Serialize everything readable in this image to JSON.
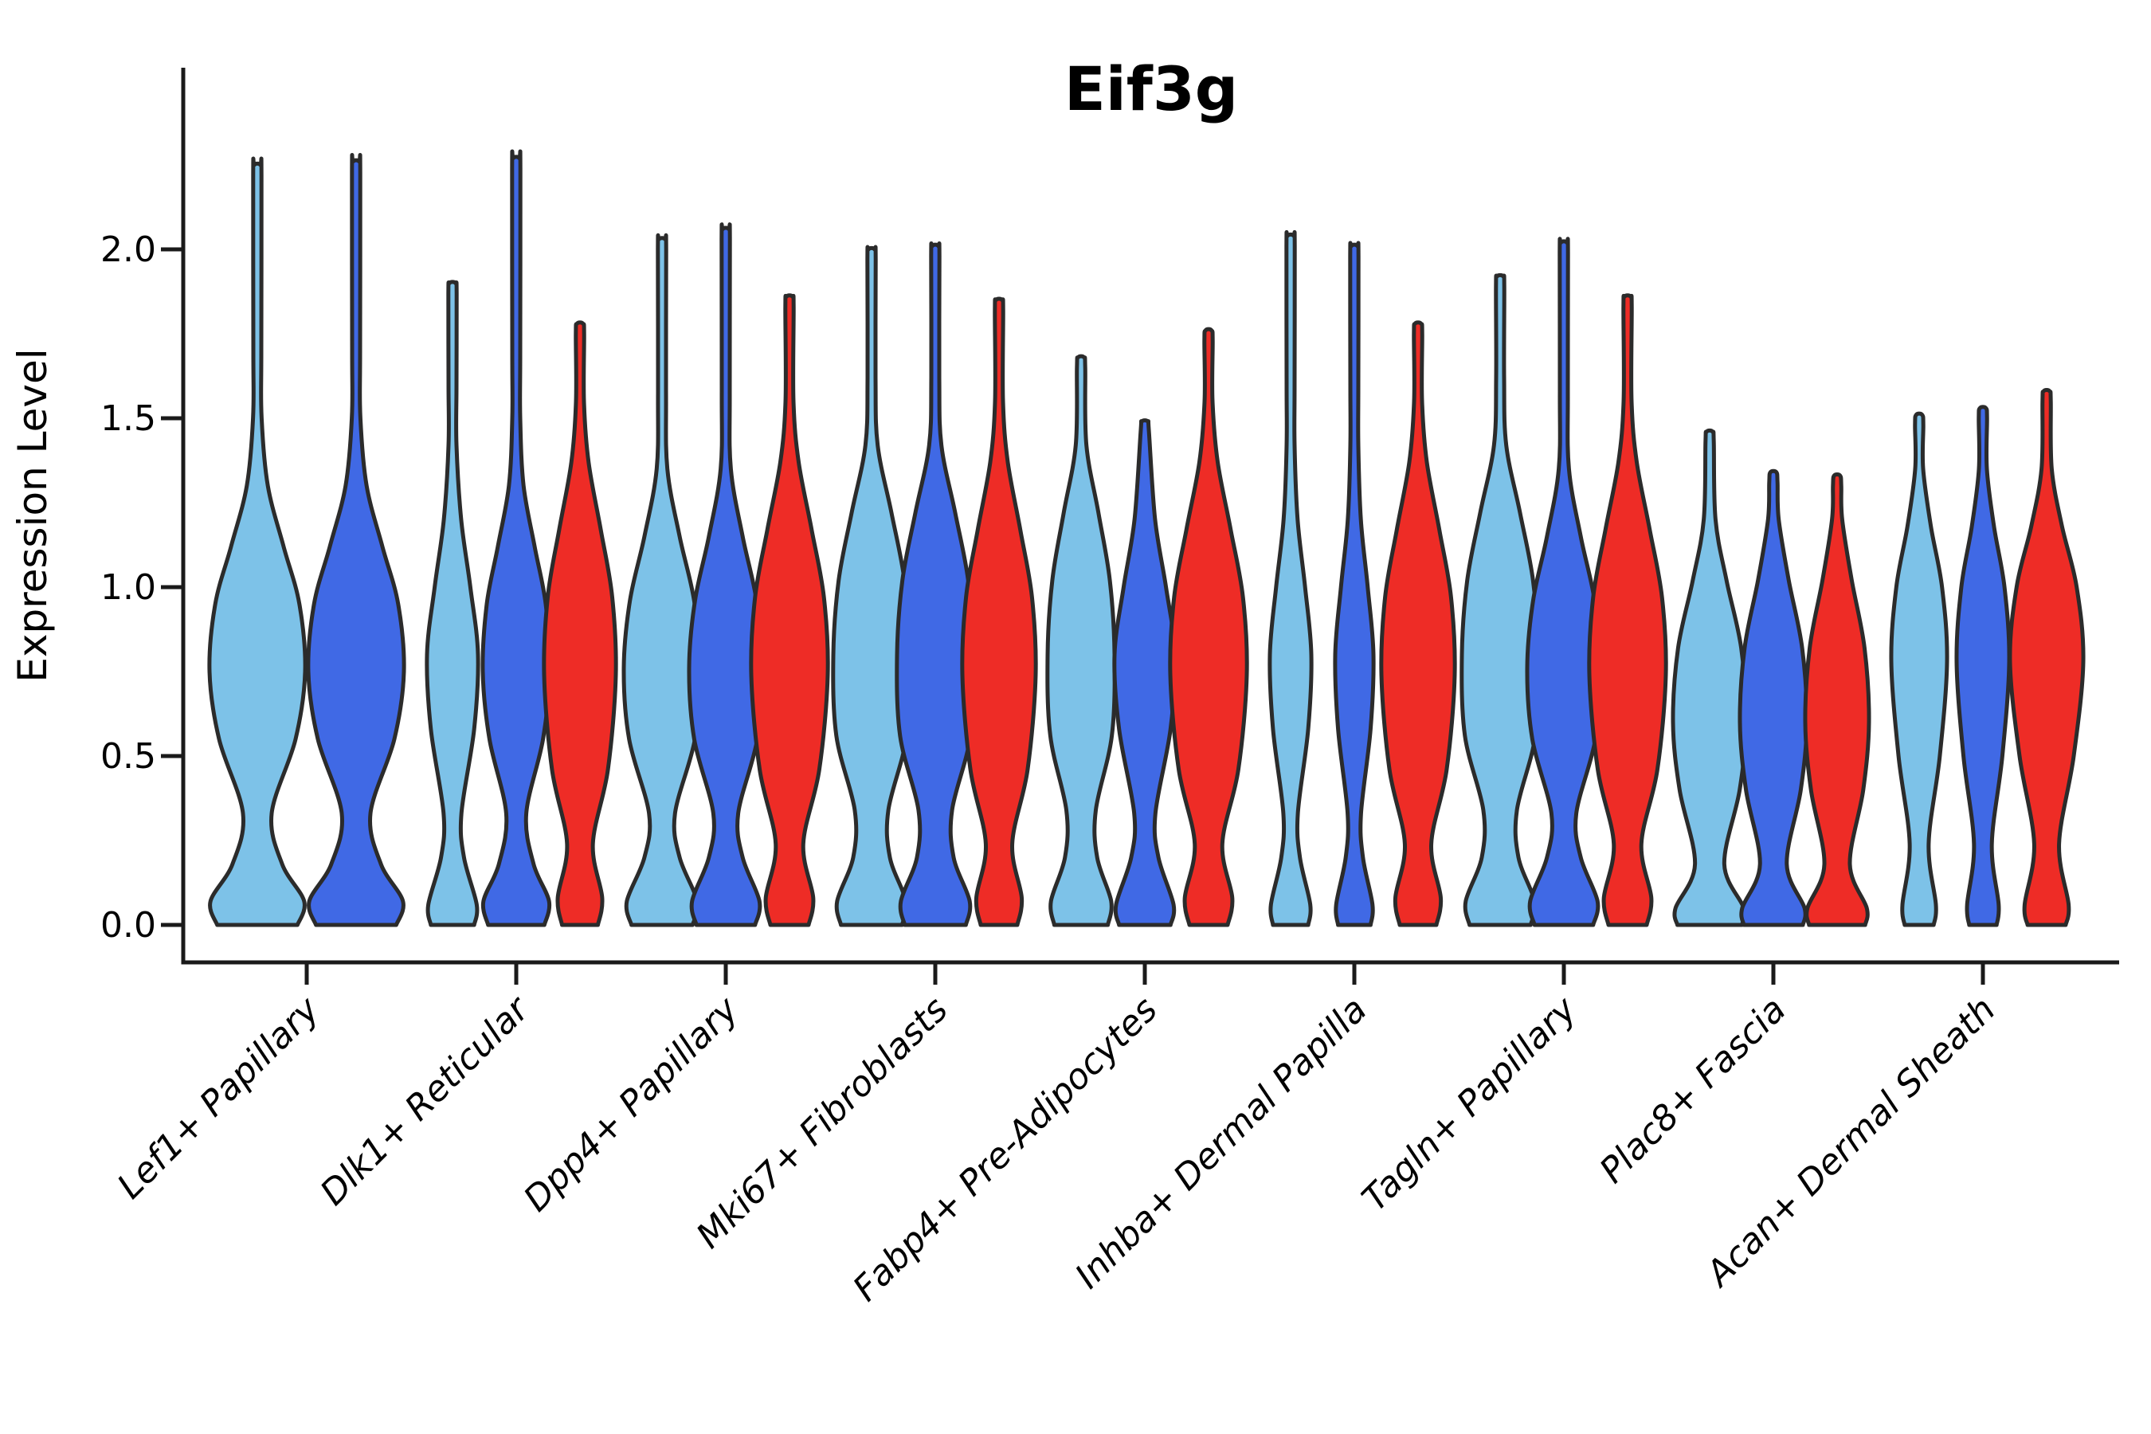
{
  "title": "Eif3g",
  "axes": {
    "ylabel": "Expression Level",
    "ytick_labels": [
      "0.0",
      "0.5",
      "1.0",
      "1.5",
      "2.0"
    ]
  },
  "colors": {
    "light_blue": "#7DC2E8",
    "dark_blue": "#4069E5",
    "red": "#EE2C26",
    "edge": "#2B2B2B",
    "axis": "#1A1A1A",
    "text": "#000000",
    "background": "#FFFFFF"
  },
  "chart_data": {
    "type": "violin",
    "title": "Eif3g",
    "xlabel": "",
    "ylabel": "Expression Level",
    "grid": false,
    "legend_position": "none",
    "ylim": [
      0,
      2.5
    ],
    "yticks": [
      0,
      0.5,
      1.0,
      1.5,
      2.0
    ],
    "series": [
      {
        "name": "light_blue",
        "color": "#7DC2E8"
      },
      {
        "name": "dark_blue",
        "color": "#4069E5"
      },
      {
        "name": "red",
        "color": "#EE2C26"
      }
    ],
    "categories": [
      "Lef1+ Papillary",
      "Dlk1+ Reticular",
      "Dpp4+ Papillary",
      "Mki67+ Fibroblasts",
      "Fabp4+ Pre-Adipocytes",
      "Inhba+ Dermal Papilla",
      "Tagln+ Papillary",
      "Plac8+ Fascia",
      "Acan+ Dermal Sheath"
    ],
    "profiles": {
      "A": [
        [
          0,
          0.84
        ],
        [
          0.07,
          0.98
        ],
        [
          0.18,
          0.52
        ],
        [
          0.33,
          0.3
        ],
        [
          0.55,
          0.8
        ],
        [
          0.75,
          1.0
        ],
        [
          0.95,
          0.88
        ],
        [
          1.12,
          0.55
        ],
        [
          1.3,
          0.22
        ],
        [
          1.5,
          0.09
        ],
        [
          1.7,
          0.06
        ]
      ],
      "B": [
        [
          0,
          0.8
        ],
        [
          0.07,
          0.92
        ],
        [
          0.2,
          0.46
        ],
        [
          0.33,
          0.34
        ],
        [
          0.55,
          0.86
        ],
        [
          0.76,
          1.0
        ],
        [
          0.96,
          0.84
        ],
        [
          1.15,
          0.46
        ],
        [
          1.35,
          0.14
        ],
        [
          1.58,
          0.07
        ]
      ],
      "C": [
        [
          0,
          0.8
        ],
        [
          0.07,
          0.9
        ],
        [
          0.2,
          0.48
        ],
        [
          0.34,
          0.44
        ],
        [
          0.56,
          0.92
        ],
        [
          0.8,
          1.0
        ],
        [
          1.02,
          0.86
        ],
        [
          1.22,
          0.52
        ],
        [
          1.42,
          0.16
        ],
        [
          1.62,
          0.07
        ]
      ],
      "D": [
        [
          0,
          0.5
        ],
        [
          0.08,
          0.62
        ],
        [
          0.24,
          0.36
        ],
        [
          0.46,
          0.78
        ],
        [
          0.74,
          1.0
        ],
        [
          0.97,
          0.9
        ],
        [
          1.17,
          0.58
        ],
        [
          1.37,
          0.24
        ],
        [
          1.55,
          0.09
        ]
      ],
      "E": [
        [
          0,
          0.85
        ],
        [
          0.06,
          0.95
        ],
        [
          0.2,
          0.45
        ],
        [
          0.33,
          0.35
        ],
        [
          0.58,
          0.85
        ],
        [
          0.8,
          1.0
        ],
        [
          1.0,
          0.7
        ],
        [
          1.2,
          0.34
        ],
        [
          1.42,
          0.11
        ],
        [
          1.6,
          0.06
        ]
      ],
      "F": [
        [
          0,
          0.88
        ],
        [
          0.05,
          0.93
        ],
        [
          0.18,
          0.4
        ],
        [
          0.4,
          0.82
        ],
        [
          0.6,
          1.0
        ],
        [
          0.82,
          0.86
        ],
        [
          1.02,
          0.46
        ],
        [
          1.2,
          0.16
        ]
      ],
      "G": [
        [
          0,
          0.52
        ],
        [
          0.06,
          0.6
        ],
        [
          0.24,
          0.34
        ],
        [
          0.5,
          0.74
        ],
        [
          0.78,
          1.0
        ],
        [
          1.0,
          0.82
        ],
        [
          1.18,
          0.42
        ],
        [
          1.35,
          0.14
        ]
      ]
    },
    "groups": [
      {
        "label": "Lef1+ Papillary",
        "violins": [
          {
            "series": 0,
            "max": 2.25,
            "halfwidth": 60,
            "shape": "A"
          },
          {
            "series": 1,
            "max": 2.26,
            "halfwidth": 60,
            "shape": "A"
          }
        ]
      },
      {
        "label": "Dlk1+ Reticular",
        "violins": [
          {
            "series": 0,
            "max": 1.9,
            "halfwidth": 32,
            "shape": "E"
          },
          {
            "series": 1,
            "max": 2.27,
            "halfwidth": 42,
            "shape": "A"
          },
          {
            "series": 2,
            "max": 1.78,
            "halfwidth": 45,
            "shape": "D"
          }
        ]
      },
      {
        "label": "Dpp4+ Papillary",
        "violins": [
          {
            "series": 0,
            "max": 2.03,
            "halfwidth": 48,
            "shape": "B"
          },
          {
            "series": 1,
            "max": 2.06,
            "halfwidth": 46,
            "shape": "B"
          },
          {
            "series": 2,
            "max": 1.86,
            "halfwidth": 48,
            "shape": "D"
          }
        ]
      },
      {
        "label": "Mki67+ Fibroblasts",
        "violins": [
          {
            "series": 0,
            "max": 2.0,
            "halfwidth": 48,
            "shape": "C"
          },
          {
            "series": 1,
            "max": 2.01,
            "halfwidth": 48,
            "shape": "C"
          },
          {
            "series": 2,
            "max": 1.85,
            "halfwidth": 46,
            "shape": "D"
          }
        ]
      },
      {
        "label": "Fabp4+ Pre-Adipocytes",
        "violins": [
          {
            "series": 0,
            "max": 1.68,
            "halfwidth": 42,
            "shape": "C"
          },
          {
            "series": 1,
            "max": 1.49,
            "halfwidth": 38,
            "shape": "E"
          },
          {
            "series": 2,
            "max": 1.76,
            "halfwidth": 48,
            "shape": "D"
          }
        ]
      },
      {
        "label": "Inhba+ Dermal Papilla",
        "violins": [
          {
            "series": 0,
            "max": 2.04,
            "halfwidth": 26,
            "shape": "E"
          },
          {
            "series": 1,
            "max": 2.01,
            "halfwidth": 24,
            "shape": "E"
          },
          {
            "series": 2,
            "max": 1.78,
            "halfwidth": 46,
            "shape": "D"
          }
        ]
      },
      {
        "label": "Tagln+ Papillary",
        "violins": [
          {
            "series": 0,
            "max": 1.92,
            "halfwidth": 48,
            "shape": "C"
          },
          {
            "series": 1,
            "max": 2.02,
            "halfwidth": 46,
            "shape": "B"
          },
          {
            "series": 2,
            "max": 1.86,
            "halfwidth": 48,
            "shape": "D"
          }
        ]
      },
      {
        "label": "Plac8+ Fascia",
        "violins": [
          {
            "series": 0,
            "max": 1.46,
            "halfwidth": 46,
            "shape": "F"
          },
          {
            "series": 1,
            "max": 1.34,
            "halfwidth": 42,
            "shape": "F"
          },
          {
            "series": 2,
            "max": 1.33,
            "halfwidth": 40,
            "shape": "F"
          }
        ]
      },
      {
        "label": "Acan+ Dermal Sheath",
        "violins": [
          {
            "series": 0,
            "max": 1.51,
            "halfwidth": 35,
            "shape": "G"
          },
          {
            "series": 1,
            "max": 1.53,
            "halfwidth": 33,
            "shape": "G"
          },
          {
            "series": 2,
            "max": 1.58,
            "halfwidth": 46,
            "shape": "G"
          }
        ]
      }
    ]
  }
}
